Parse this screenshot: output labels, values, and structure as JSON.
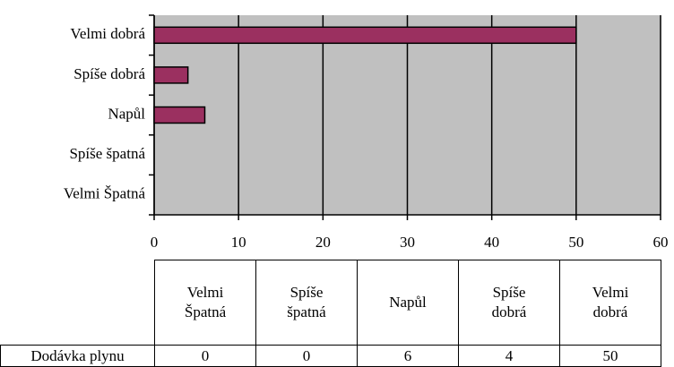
{
  "chart_data": {
    "type": "bar",
    "orientation": "horizontal",
    "categories": [
      "Velmi Špatná",
      "Spíše špatná",
      "Napůl",
      "Spíše dobrá",
      "Velmi dobrá"
    ],
    "series": [
      {
        "name": "Dodávka plynu",
        "color": "#9b3060",
        "values": [
          0,
          0,
          6,
          4,
          50
        ]
      }
    ],
    "xlim": [
      0,
      60
    ],
    "xticks": [
      0,
      10,
      20,
      30,
      40,
      50,
      60
    ],
    "grid": true,
    "data_table": true
  }
}
